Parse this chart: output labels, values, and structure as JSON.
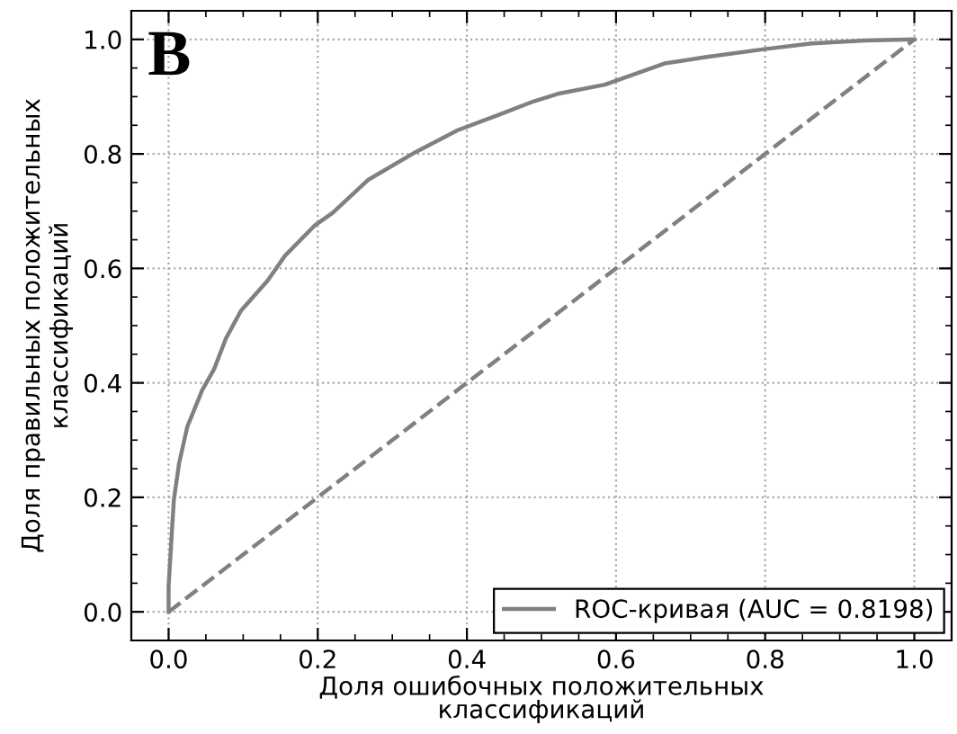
{
  "chart_data": {
    "type": "line",
    "xlabel": "Доля ошибочных положительных\nклассификаций",
    "ylabel": "Доля правильных положительных\nклассификаций",
    "annotations": [
      "B"
    ],
    "series": [
      {
        "name": "ROC-кривая (AUC = 0.8198)",
        "color": "#808080",
        "line_style": "solid",
        "x": [
          0,
          0,
          0.003,
          0.007,
          0.014,
          0.025,
          0.045,
          0.061,
          0.077,
          0.097,
          0.133,
          0.156,
          0.196,
          0.22,
          0.268,
          0.331,
          0.387,
          0.442,
          0.49,
          0.522,
          0.585,
          0.665,
          0.72,
          0.799,
          0.863,
          0.934,
          1.0
        ],
        "values": [
          0,
          0.045,
          0.109,
          0.195,
          0.259,
          0.323,
          0.387,
          0.424,
          0.478,
          0.526,
          0.579,
          0.622,
          0.675,
          0.697,
          0.755,
          0.803,
          0.841,
          0.868,
          0.892,
          0.905,
          0.921,
          0.958,
          0.969,
          0.983,
          0.993,
          0.998,
          1.0
        ]
      },
      {
        "color": "#808080",
        "line_style": "dashed",
        "x": [
          0,
          1
        ],
        "values": [
          0,
          1
        ]
      }
    ],
    "xlim": [
      -0.05,
      1.05
    ],
    "ylim": [
      -0.05,
      1.05
    ],
    "xticks": [
      {
        "value": 0,
        "label": "0.0"
      },
      0.2,
      0.4,
      0.6,
      0.8,
      {
        "value": 1,
        "label": "1.0"
      }
    ],
    "yticks": [
      {
        "value": 0,
        "label": "0.0"
      },
      0.2,
      0.4,
      0.6,
      0.8,
      {
        "value": 1,
        "label": "1.0"
      }
    ],
    "grid": true,
    "legend": "bottom right",
    "marker": "none"
  }
}
